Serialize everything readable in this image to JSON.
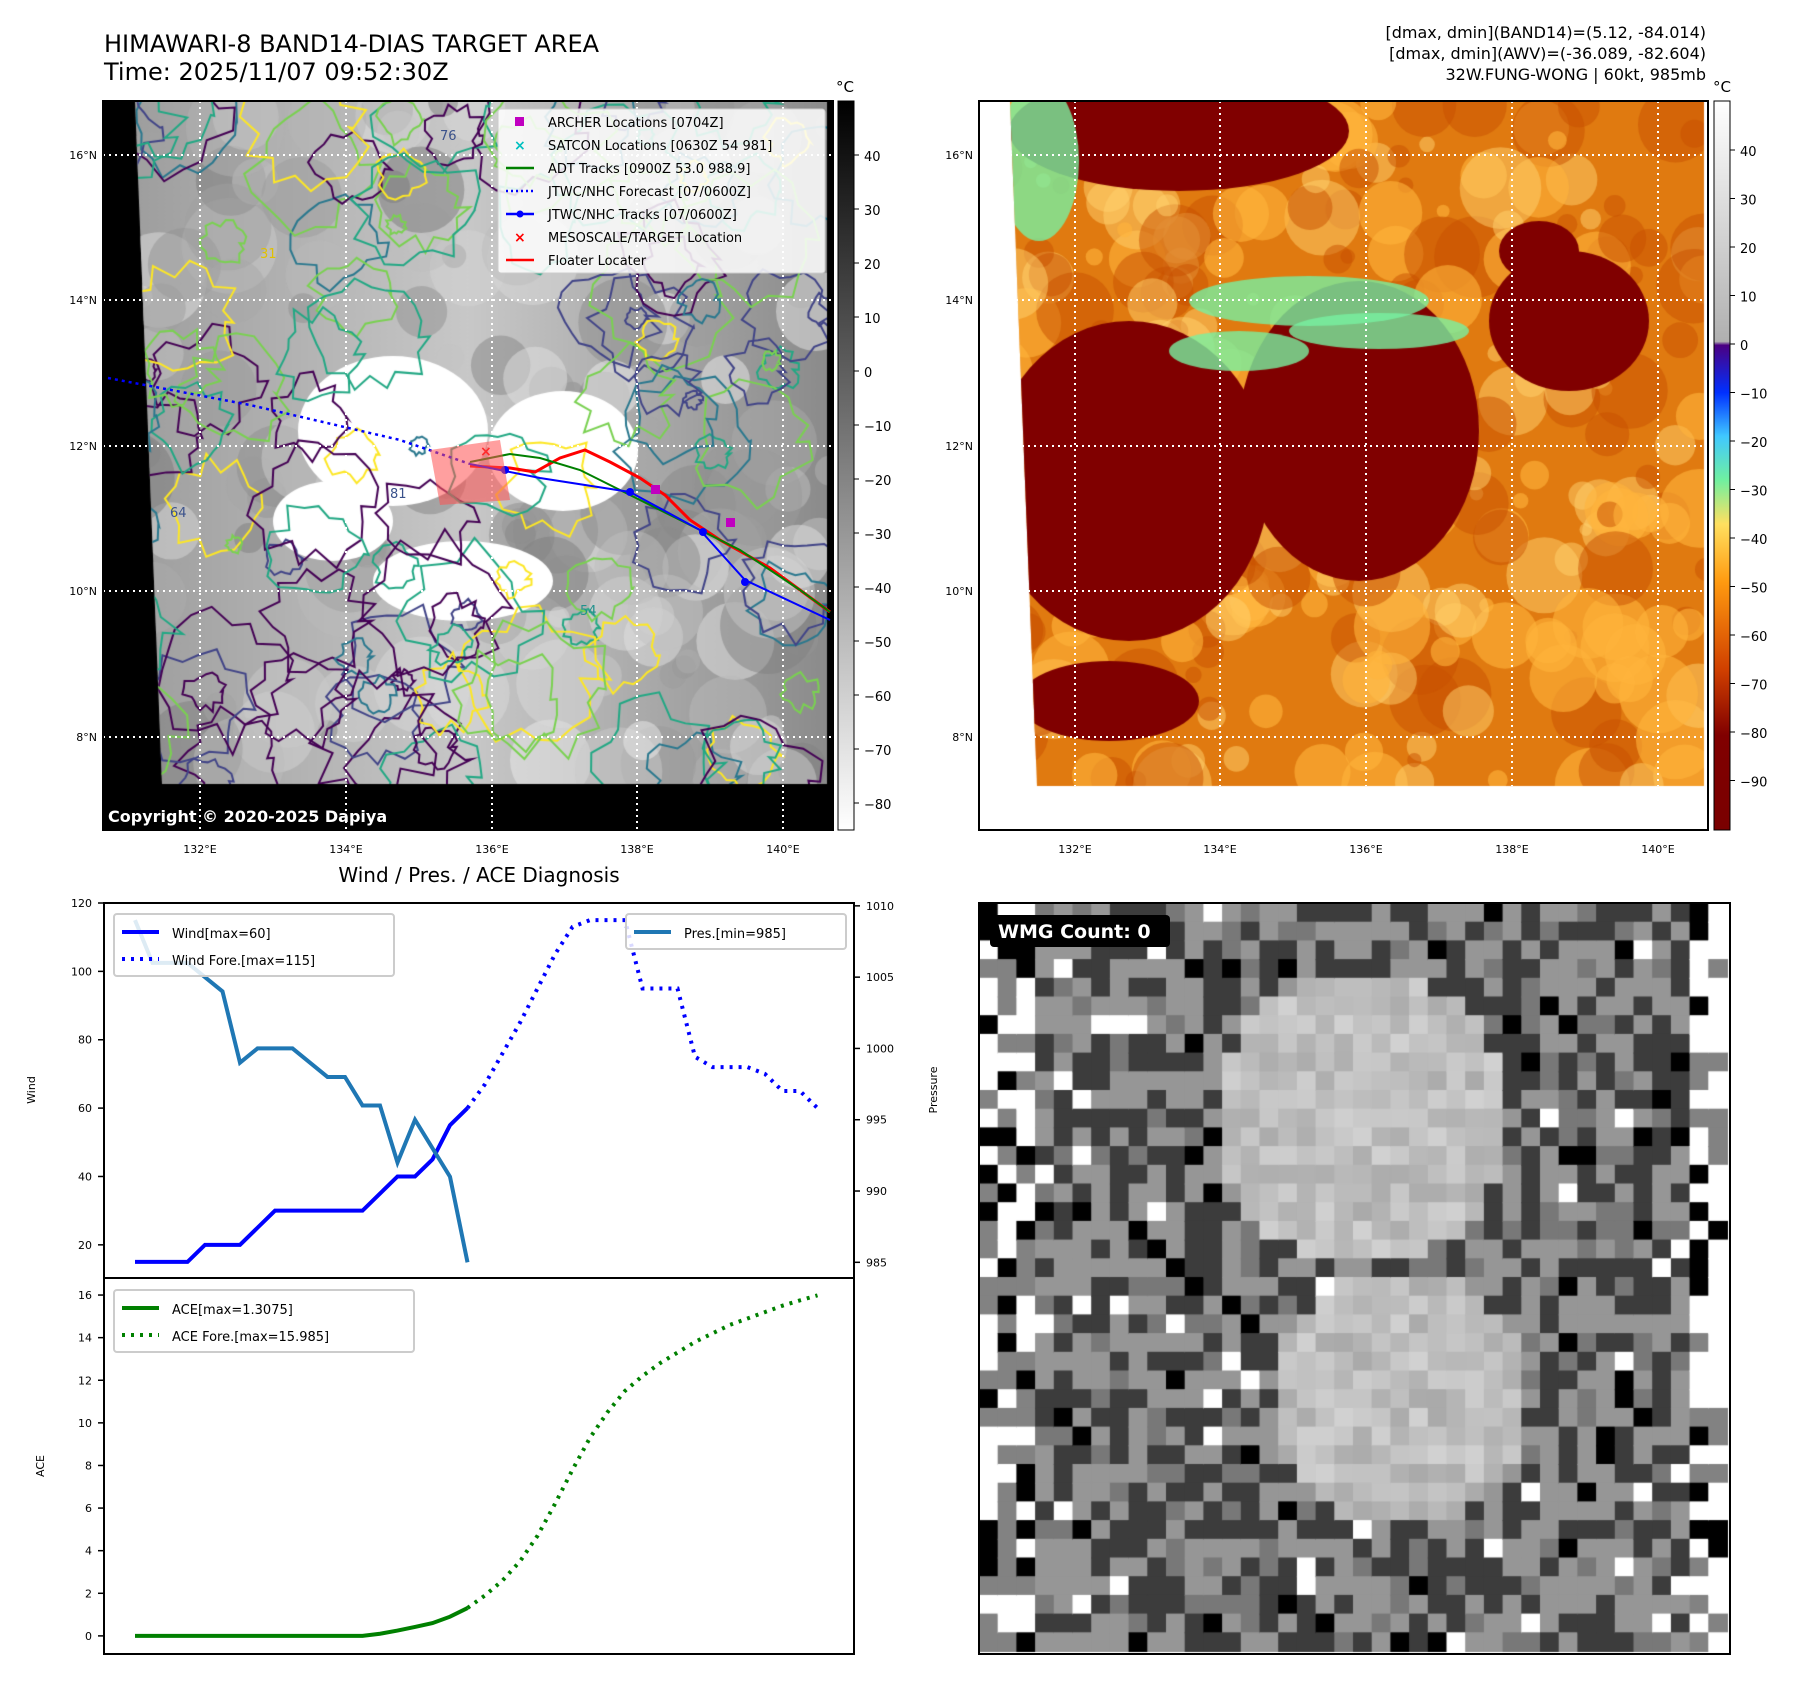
{
  "header": {
    "title": "HIMAWARI-8 BAND14-DIAS TARGET AREA",
    "time": "Time: 2025/11/07 09:52:30Z"
  },
  "info": {
    "line1": "[dmax, dmin](BAND14)=(5.12, -84.014)",
    "line2": "[dmax, dmin](AWV)=(-36.089, -82.604)",
    "line3": "32W.FUNG-WONG | 60kt, 985mb"
  },
  "map_axes": {
    "lat_labels": [
      "16°N",
      "14°N",
      "12°N",
      "10°N",
      "8°N"
    ],
    "lon_labels": [
      "132°E",
      "134°E",
      "136°E",
      "138°E",
      "140°E"
    ]
  },
  "map1": {
    "colorbar_unit": "°C",
    "colorbar_ticks": [
      "40",
      "30",
      "20",
      "10",
      "0",
      "−10",
      "−20",
      "−30",
      "−40",
      "−50",
      "−60",
      "−70",
      "−80"
    ],
    "copyright": "Copyright © 2020-2025 Dapiya",
    "contour_labels": [
      "76",
      "64",
      "31",
      "54",
      "81"
    ],
    "legend": [
      {
        "label": "ARCHER Locations [0704Z]",
        "color": "#c000c0",
        "marker": "square"
      },
      {
        "label": "SATCON Locations [0630Z 54 981]",
        "color": "#00c0c0",
        "marker": "x"
      },
      {
        "label": "ADT Tracks [0900Z 53.0 988.9]",
        "color": "#008000",
        "marker": "line"
      },
      {
        "label": "JTWC/NHC Forecast [07/0600Z]",
        "color": "#0000ff",
        "marker": "dotted"
      },
      {
        "label": "JTWC/NHC Tracks [07/0600Z]",
        "color": "#0000ff",
        "marker": "line-dot"
      },
      {
        "label": "MESOSCALE/TARGET Location",
        "color": "#ff0000",
        "marker": "x"
      },
      {
        "label": "Floater Locater",
        "color": "#ff0000",
        "marker": "line"
      }
    ]
  },
  "map2": {
    "colorbar_unit": "°C",
    "colorbar_ticks": [
      "40",
      "30",
      "20",
      "10",
      "0",
      "−10",
      "−20",
      "−30",
      "−40",
      "−50",
      "−60",
      "−70",
      "−80",
      "−90"
    ]
  },
  "wmg": {
    "label": "WMG Count: 0"
  },
  "chart_data": {
    "type": "line",
    "title": "Wind / Pres. / ACE Diagnosis",
    "wind_panel": {
      "ylabel": "Wind",
      "y2label": "Pressure",
      "ylim": [
        10.3,
        120
      ],
      "y2lim": [
        983.9,
        1010.2
      ],
      "yticks": [
        20,
        40,
        60,
        80,
        100,
        120
      ],
      "y2ticks": [
        985,
        990,
        995,
        1000,
        1005,
        1010
      ],
      "legend_left": [
        "Wind[max=60]",
        "Wind Fore.[max=115]"
      ],
      "legend_right": [
        "Pres.[min=985]"
      ],
      "series": [
        {
          "name": "Wind",
          "color": "#0000ff",
          "style": "solid",
          "axis": "left",
          "x_start": 0,
          "values": [
            15,
            15,
            15,
            15,
            20,
            20,
            20,
            25,
            30,
            30,
            30,
            30,
            30,
            30,
            35,
            40,
            40,
            45,
            55,
            60
          ]
        },
        {
          "name": "Wind Fore.",
          "color": "#0000ff",
          "style": "dotted",
          "axis": "left",
          "x_start": 19,
          "values": [
            60,
            67,
            76,
            85,
            95,
            105,
            113,
            115,
            115,
            115,
            95,
            95,
            95,
            75,
            72,
            72,
            72,
            70,
            65,
            65,
            60
          ]
        },
        {
          "name": "Pres.",
          "color": "#1f77b4",
          "style": "solid",
          "axis": "right",
          "x_start": 0,
          "values": [
            1009,
            1006,
            1006,
            1006,
            1005,
            1004,
            999,
            1000,
            1000,
            1000,
            999,
            998,
            998,
            996,
            996,
            992,
            995,
            993,
            991,
            985
          ]
        }
      ]
    },
    "ace_panel": {
      "ylabel": "ACE",
      "ylim": [
        -0.85,
        16.8
      ],
      "yticks": [
        0,
        2,
        4,
        6,
        8,
        10,
        12,
        14,
        16
      ],
      "legend": [
        "ACE[max=1.3075]",
        "ACE Fore.[max=15.985]"
      ],
      "series": [
        {
          "name": "ACE",
          "color": "#008000",
          "style": "solid",
          "x_start": 0,
          "values": [
            0,
            0,
            0,
            0,
            0,
            0,
            0,
            0,
            0,
            0,
            0,
            0,
            0,
            0,
            0.1,
            0.25,
            0.42,
            0.6,
            0.9,
            1.3075
          ]
        },
        {
          "name": "ACE Fore.",
          "color": "#008000",
          "style": "dotted",
          "x_start": 19,
          "values": [
            1.3075,
            1.9,
            2.6,
            3.5,
            4.7,
            6.2,
            7.8,
            9.3,
            10.5,
            11.5,
            12.2,
            12.8,
            13.3,
            13.8,
            14.2,
            14.6,
            14.9,
            15.2,
            15.5,
            15.75,
            15.985
          ]
        }
      ]
    },
    "x_count": 40
  }
}
